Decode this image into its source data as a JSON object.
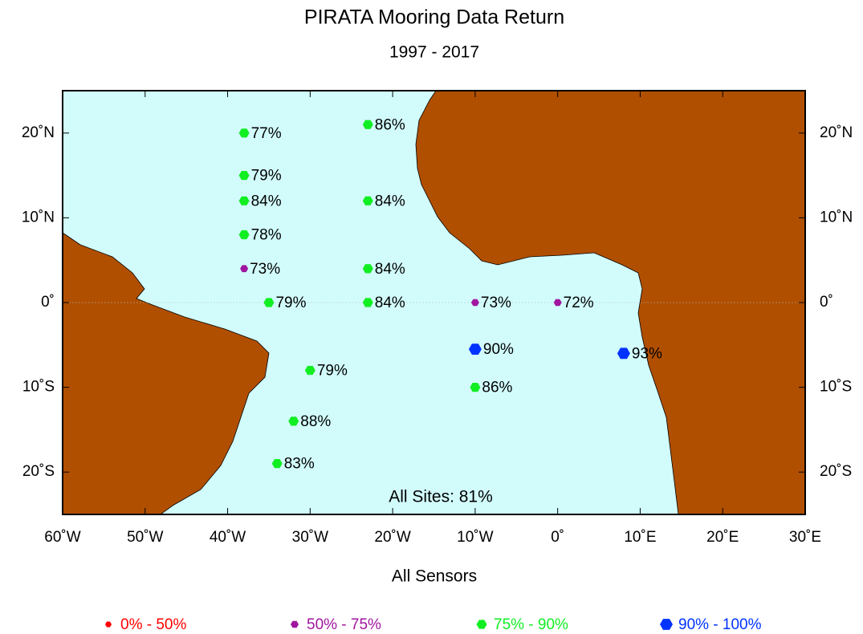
{
  "chart_data": {
    "type": "scatter",
    "title": "PIRATA Mooring Data Return",
    "subtitle": "1997 - 2017",
    "x_label": "All Sensors",
    "annotation": "All Sites: 81%",
    "xlim": [
      -60,
      30
    ],
    "ylim": [
      -25,
      25
    ],
    "xticks": [
      {
        "value": -60,
        "label": "60˚W"
      },
      {
        "value": -50,
        "label": "50˚W"
      },
      {
        "value": -40,
        "label": "40˚W"
      },
      {
        "value": -30,
        "label": "30˚W"
      },
      {
        "value": -20,
        "label": "20˚W"
      },
      {
        "value": -10,
        "label": "10˚W"
      },
      {
        "value": 0,
        "label": "0˚"
      },
      {
        "value": 10,
        "label": "10˚E"
      },
      {
        "value": 20,
        "label": "20˚E"
      },
      {
        "value": 30,
        "label": "30˚E"
      }
    ],
    "yticks": [
      {
        "value": 20,
        "label": "20˚N"
      },
      {
        "value": 10,
        "label": "10˚N"
      },
      {
        "value": 0,
        "label": "0˚"
      },
      {
        "value": -10,
        "label": "10˚S"
      },
      {
        "value": -20,
        "label": "20˚S"
      }
    ],
    "series": [
      {
        "name": "0% - 50%",
        "color": "#ff0000",
        "x": [],
        "y": [],
        "values": [],
        "value_labels": []
      },
      {
        "name": "50% - 75%",
        "color": "#a0169e",
        "x": [
          -38,
          -10,
          0
        ],
        "y": [
          4,
          0,
          0
        ],
        "values": [
          73,
          73,
          72
        ],
        "value_labels": [
          "73%",
          "73%",
          "72%"
        ]
      },
      {
        "name": "75% - 90%",
        "color": "#11ee22",
        "x": [
          -38,
          -23,
          -38,
          -38,
          -23,
          -38,
          -23,
          -35,
          -23,
          -30,
          -10,
          -32,
          -34
        ],
        "y": [
          20,
          21,
          15,
          12,
          12,
          8,
          4,
          0,
          0,
          -8,
          -10,
          -14,
          -19
        ],
        "values": [
          77,
          86,
          79,
          84,
          84,
          78,
          84,
          79,
          84,
          79,
          86,
          88,
          83
        ],
        "value_labels": [
          "77%",
          "86%",
          "79%",
          "84%",
          "84%",
          "78%",
          "84%",
          "79%",
          "84%",
          "79%",
          "86%",
          "88%",
          "83%"
        ]
      },
      {
        "name": "90% - 100%",
        "color": "#0033ff",
        "x": [
          -10,
          8
        ],
        "y": [
          -5.5,
          -6
        ],
        "values": [
          90,
          93
        ],
        "value_labels": [
          "90%",
          "93%"
        ]
      }
    ]
  }
}
